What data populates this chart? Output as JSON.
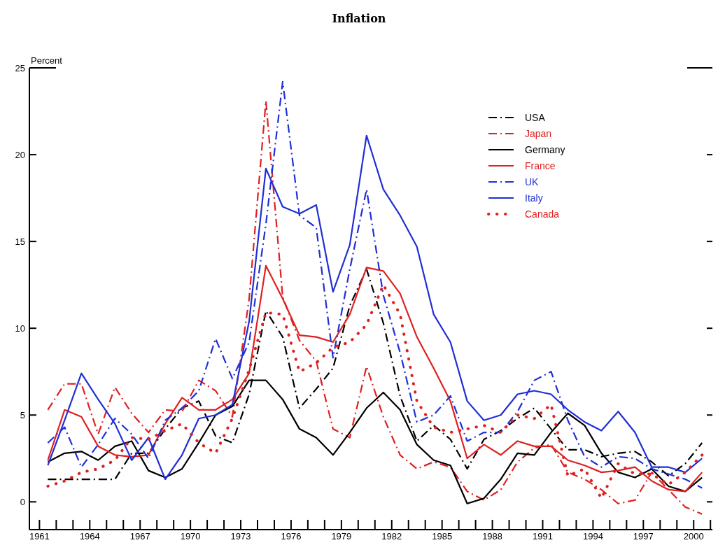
{
  "chart_data": {
    "type": "line",
    "title": "Inflation",
    "ylabel": "Percent",
    "x": [
      1961,
      1962,
      1963,
      1964,
      1965,
      1966,
      1967,
      1968,
      1969,
      1970,
      1971,
      1972,
      1973,
      1974,
      1975,
      1976,
      1977,
      1978,
      1979,
      1980,
      1981,
      1982,
      1983,
      1984,
      1985,
      1986,
      1987,
      1988,
      1989,
      1990,
      1991,
      1992,
      1993,
      1994,
      1995,
      1996,
      1997,
      1998,
      1999,
      2000
    ],
    "xlim": [
      1959.9,
      2000.7
    ],
    "xticks": [
      {
        "value": 1960.5,
        "label": "1961"
      },
      {
        "value": 1961.5,
        "label": null
      },
      {
        "value": 1962.5,
        "label": null
      },
      {
        "value": 1963.5,
        "label": "1964"
      },
      {
        "value": 1964.5,
        "label": null
      },
      {
        "value": 1965.5,
        "label": null
      },
      {
        "value": 1966.5,
        "label": "1967"
      },
      {
        "value": 1967.5,
        "label": null
      },
      {
        "value": 1968.5,
        "label": null
      },
      {
        "value": 1969.5,
        "label": "1970"
      },
      {
        "value": 1970.5,
        "label": null
      },
      {
        "value": 1971.5,
        "label": null
      },
      {
        "value": 1972.5,
        "label": "1973"
      },
      {
        "value": 1973.5,
        "label": null
      },
      {
        "value": 1974.5,
        "label": null
      },
      {
        "value": 1975.5,
        "label": "1976"
      },
      {
        "value": 1976.5,
        "label": null
      },
      {
        "value": 1977.5,
        "label": null
      },
      {
        "value": 1978.5,
        "label": "1979"
      },
      {
        "value": 1979.5,
        "label": null
      },
      {
        "value": 1980.5,
        "label": null
      },
      {
        "value": 1981.5,
        "label": "1982"
      },
      {
        "value": 1982.5,
        "label": null
      },
      {
        "value": 1983.5,
        "label": null
      },
      {
        "value": 1984.5,
        "label": "1985"
      },
      {
        "value": 1985.5,
        "label": null
      },
      {
        "value": 1986.5,
        "label": null
      },
      {
        "value": 1987.5,
        "label": "1988"
      },
      {
        "value": 1988.5,
        "label": null
      },
      {
        "value": 1989.5,
        "label": null
      },
      {
        "value": 1990.5,
        "label": "1991"
      },
      {
        "value": 1991.5,
        "label": null
      },
      {
        "value": 1992.5,
        "label": null
      },
      {
        "value": 1993.5,
        "label": "1994"
      },
      {
        "value": 1994.5,
        "label": null
      },
      {
        "value": 1995.5,
        "label": null
      },
      {
        "value": 1996.5,
        "label": "1997"
      },
      {
        "value": 1997.5,
        "label": null
      },
      {
        "value": 1998.5,
        "label": null
      },
      {
        "value": 1999.5,
        "label": "2000"
      },
      {
        "value": 2000.5,
        "label": null
      }
    ],
    "ylim": [
      -1.6,
      25
    ],
    "yticks": [
      0,
      5,
      10,
      15,
      20,
      25
    ],
    "legend": "top right",
    "series": [
      {
        "name": "USA",
        "color": "#000000",
        "line_style": "dashdot",
        "values": [
          1.3,
          1.3,
          1.3,
          1.3,
          1.3,
          2.8,
          2.8,
          4.2,
          5.4,
          5.8,
          3.8,
          3.4,
          6.2,
          11.0,
          9.5,
          5.4,
          6.5,
          7.7,
          11.3,
          13.4,
          10.3,
          6.1,
          3.5,
          4.4,
          3.6,
          1.9,
          3.6,
          4.1,
          4.8,
          5.4,
          4.2,
          3.0,
          3.0,
          2.6,
          2.8,
          2.9,
          2.3,
          1.5,
          2.2,
          3.4
        ]
      },
      {
        "name": "Japan",
        "color": "#e02020",
        "line_style": "dashdot",
        "values": [
          5.3,
          6.8,
          6.8,
          3.9,
          6.6,
          5.1,
          4.0,
          5.3,
          5.2,
          7.0,
          6.4,
          4.9,
          11.7,
          23.1,
          11.8,
          9.3,
          8.1,
          4.2,
          3.7,
          7.8,
          4.9,
          2.7,
          1.9,
          2.3,
          2.0,
          0.6,
          0.1,
          0.7,
          2.3,
          3.1,
          3.3,
          1.7,
          1.3,
          0.7,
          -0.1,
          0.1,
          1.7,
          0.7,
          -0.3,
          -0.7
        ]
      },
      {
        "name": "Germany",
        "color": "#000000",
        "line_style": "solid",
        "values": [
          2.3,
          2.8,
          2.9,
          2.4,
          3.2,
          3.5,
          1.8,
          1.4,
          1.9,
          3.4,
          5.0,
          5.5,
          7.0,
          7.0,
          5.9,
          4.2,
          3.7,
          2.7,
          4.0,
          5.4,
          6.3,
          5.3,
          3.3,
          2.4,
          2.1,
          -0.1,
          0.2,
          1.3,
          2.8,
          2.7,
          4.0,
          5.1,
          4.4,
          2.8,
          1.7,
          1.4,
          1.9,
          0.9,
          0.6,
          1.4
        ]
      },
      {
        "name": "France",
        "color": "#e02020",
        "line_style": "solid",
        "values": [
          2.4,
          5.3,
          4.9,
          3.2,
          2.7,
          2.6,
          2.7,
          4.5,
          6.0,
          5.3,
          5.3,
          5.9,
          7.4,
          13.6,
          11.7,
          9.6,
          9.5,
          9.2,
          10.8,
          13.5,
          13.3,
          12.0,
          9.5,
          7.7,
          5.8,
          2.5,
          3.3,
          2.7,
          3.5,
          3.2,
          3.2,
          2.4,
          2.1,
          1.7,
          1.8,
          2.0,
          1.2,
          0.7,
          0.6,
          1.7
        ]
      },
      {
        "name": "UK",
        "color": "#1f2fd6",
        "line_style": "dashdot",
        "values": [
          3.4,
          4.3,
          2.0,
          3.3,
          4.8,
          3.9,
          2.5,
          4.7,
          5.4,
          6.4,
          9.4,
          7.1,
          9.2,
          16.0,
          24.2,
          16.5,
          15.8,
          8.3,
          13.4,
          18.0,
          11.9,
          8.6,
          4.6,
          5.0,
          6.1,
          3.5,
          4.0,
          4.0,
          5.2,
          7.0,
          7.5,
          4.7,
          2.6,
          2.0,
          2.6,
          2.5,
          1.9,
          1.6,
          1.3,
          0.8
        ]
      },
      {
        "name": "Italy",
        "color": "#1f2fd6",
        "line_style": "solid",
        "values": [
          2.1,
          4.7,
          7.4,
          5.9,
          4.5,
          2.4,
          3.7,
          1.3,
          2.7,
          4.8,
          5.0,
          5.6,
          10.4,
          19.2,
          17.0,
          16.6,
          17.1,
          12.1,
          14.8,
          21.1,
          18.0,
          16.5,
          14.7,
          10.8,
          9.2,
          5.8,
          4.7,
          5.0,
          6.2,
          6.4,
          6.2,
          5.3,
          4.6,
          4.1,
          5.2,
          4.0,
          2.0,
          2.0,
          1.7,
          2.5
        ]
      },
      {
        "name": "Canada",
        "color": "#e02020",
        "line_style": "dotted",
        "values": [
          0.9,
          1.2,
          1.7,
          1.9,
          2.4,
          3.7,
          3.6,
          4.1,
          4.5,
          3.4,
          2.8,
          4.8,
          7.6,
          10.9,
          10.8,
          7.5,
          8.0,
          8.9,
          9.2,
          10.2,
          12.5,
          10.8,
          5.8,
          4.3,
          4.0,
          4.2,
          4.4,
          4.0,
          5.0,
          4.8,
          5.6,
          1.5,
          1.9,
          0.2,
          2.2,
          1.6,
          1.6,
          1.0,
          1.7,
          2.7
        ]
      }
    ]
  }
}
